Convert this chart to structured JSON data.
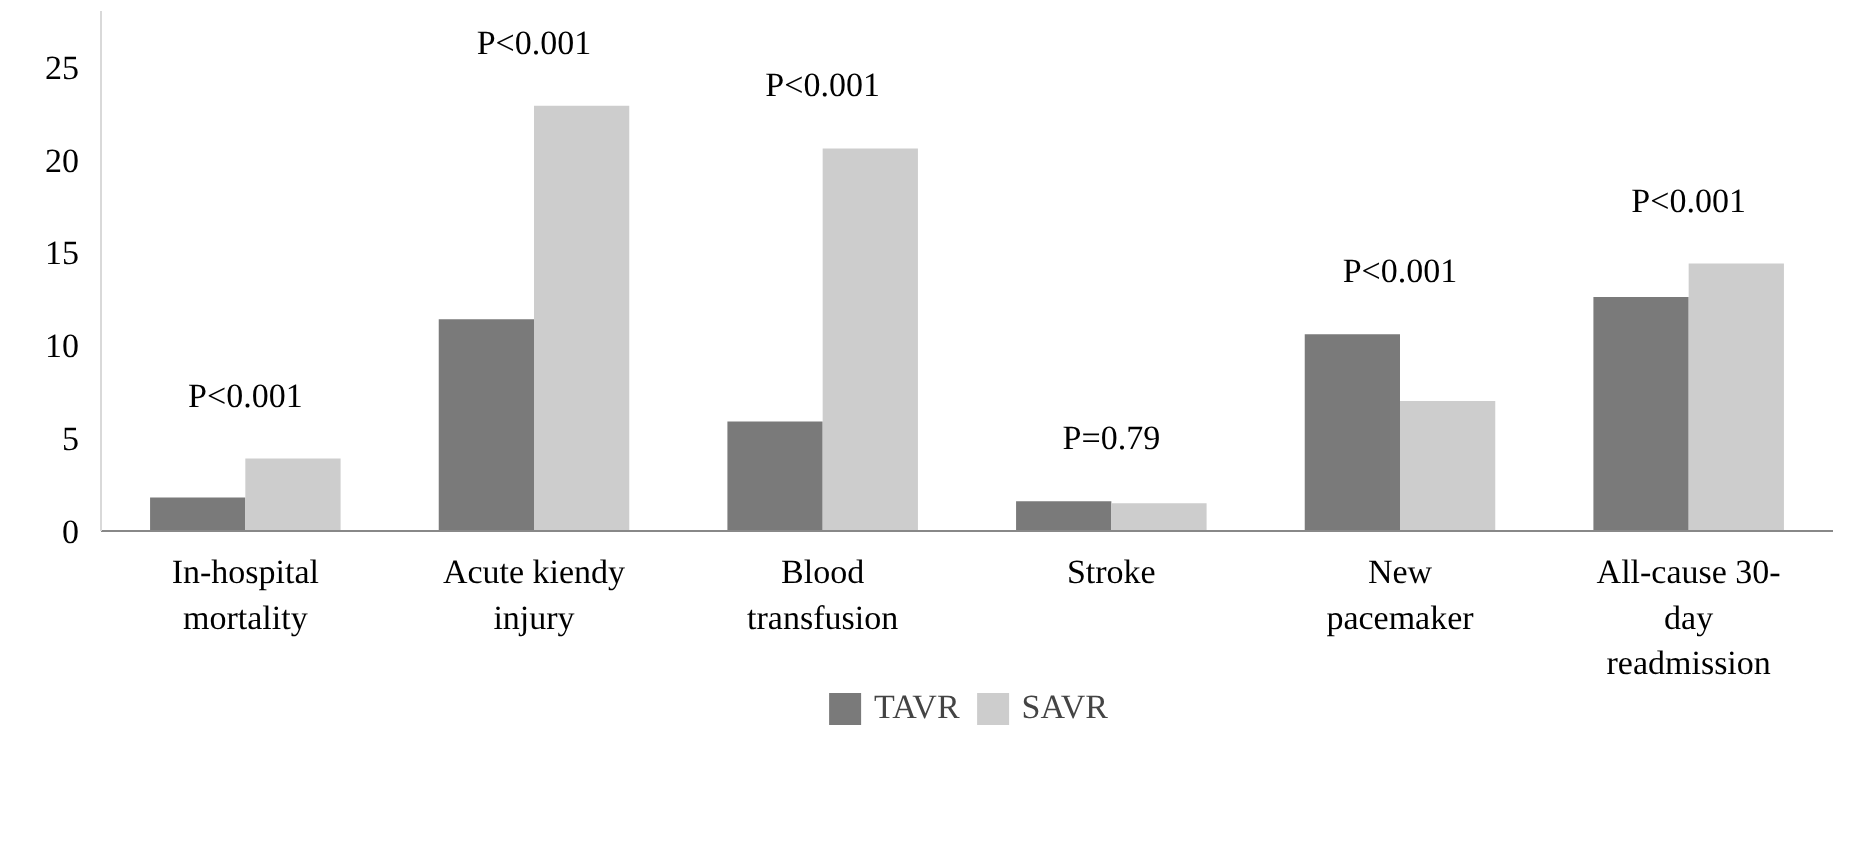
{
  "chart_data": {
    "type": "bar",
    "categories": [
      "In-hospital\nmortality",
      "Acute kiendy\ninjury",
      "Blood\ntransfusion",
      "Stroke",
      "New\npacemaker",
      "All-cause 30-\nday\nreadmission"
    ],
    "series": [
      {
        "name": "TAVR",
        "color": "#7a7a7a",
        "values": [
          1.8,
          11.4,
          5.9,
          1.6,
          10.6,
          12.6
        ]
      },
      {
        "name": "SAVR",
        "color": "#cdcdcd",
        "values": [
          3.9,
          22.9,
          20.6,
          1.5,
          7.0,
          14.4
        ]
      }
    ],
    "ylim": [
      0,
      28
    ],
    "yticks": [
      0,
      5,
      10,
      15,
      20,
      25
    ],
    "legend": "bottom",
    "annotations": [
      "P<0.001",
      "P<0.001",
      "P<0.001",
      "P=0.79",
      "P<0.001",
      "P<0.001"
    ]
  }
}
